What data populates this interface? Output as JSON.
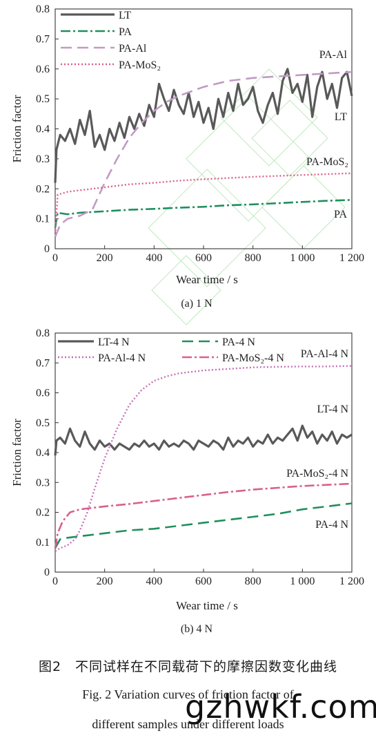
{
  "colors": {
    "LT": "#595959",
    "PA": "#1f8f5f",
    "PA-Al": "#c29ac6",
    "PA-MoS2": "#d9608c",
    "PA-Al-4N": "#c76fb5",
    "PA-MoS2-4N": "#d9608c",
    "watermark_deco": "#a8e0a8"
  },
  "chart_data": [
    {
      "type": "line",
      "panel_label": "(a) 1 N",
      "xlabel": "Wear time / s",
      "ylabel": "Friction factor",
      "xlim": [
        0,
        1200
      ],
      "ylim": [
        0,
        0.8
      ],
      "xticks": [
        "0",
        "200",
        "400",
        "600",
        "800",
        "1 000",
        "1 200"
      ],
      "yticks": [
        "0",
        "0.1",
        "0.2",
        "0.3",
        "0.4",
        "0.5",
        "0.6",
        "0.7",
        "0.8"
      ],
      "legend_position": "top-left",
      "series": [
        {
          "name": "LT",
          "key": "LT",
          "style": "solid",
          "x": [
            0,
            5,
            20,
            40,
            60,
            80,
            100,
            120,
            140,
            160,
            180,
            200,
            220,
            240,
            260,
            280,
            300,
            320,
            340,
            360,
            380,
            400,
            420,
            440,
            460,
            480,
            500,
            520,
            540,
            560,
            580,
            600,
            620,
            640,
            660,
            680,
            700,
            720,
            740,
            760,
            780,
            800,
            820,
            840,
            860,
            880,
            900,
            920,
            940,
            960,
            980,
            1000,
            1020,
            1040,
            1060,
            1080,
            1100,
            1120,
            1140,
            1160,
            1180,
            1200
          ],
          "y": [
            0.22,
            0.33,
            0.38,
            0.36,
            0.4,
            0.35,
            0.43,
            0.38,
            0.46,
            0.34,
            0.38,
            0.33,
            0.4,
            0.36,
            0.42,
            0.37,
            0.44,
            0.4,
            0.45,
            0.41,
            0.48,
            0.44,
            0.55,
            0.5,
            0.46,
            0.53,
            0.48,
            0.45,
            0.52,
            0.44,
            0.49,
            0.42,
            0.47,
            0.4,
            0.5,
            0.44,
            0.52,
            0.46,
            0.55,
            0.48,
            0.5,
            0.54,
            0.46,
            0.42,
            0.48,
            0.52,
            0.45,
            0.56,
            0.6,
            0.52,
            0.55,
            0.49,
            0.58,
            0.44,
            0.54,
            0.59,
            0.5,
            0.55,
            0.47,
            0.57,
            0.59,
            0.51
          ]
        },
        {
          "name": "PA",
          "key": "PA",
          "style": "dashdot",
          "x": [
            0,
            10,
            50,
            100,
            200,
            300,
            400,
            500,
            600,
            700,
            800,
            900,
            1000,
            1100,
            1200
          ],
          "y": [
            0.07,
            0.12,
            0.115,
            0.12,
            0.125,
            0.13,
            0.133,
            0.137,
            0.14,
            0.145,
            0.148,
            0.152,
            0.156,
            0.16,
            0.163
          ]
        },
        {
          "name": "PA-Al",
          "key": "PA-Al",
          "style": "longdash",
          "x": [
            0,
            20,
            50,
            100,
            150,
            200,
            250,
            300,
            350,
            400,
            450,
            500,
            600,
            700,
            800,
            900,
            1000,
            1100,
            1200
          ],
          "y": [
            0.04,
            0.08,
            0.1,
            0.11,
            0.13,
            0.22,
            0.3,
            0.37,
            0.42,
            0.46,
            0.49,
            0.51,
            0.54,
            0.56,
            0.57,
            0.575,
            0.58,
            0.585,
            0.59
          ]
        },
        {
          "name": "PA-MoS₂",
          "key": "PA-MoS2",
          "style": "dotted",
          "x": [
            0,
            10,
            50,
            100,
            200,
            300,
            400,
            500,
            600,
            700,
            800,
            900,
            1000,
            1100,
            1200
          ],
          "y": [
            0.05,
            0.18,
            0.19,
            0.195,
            0.205,
            0.215,
            0.22,
            0.227,
            0.232,
            0.236,
            0.24,
            0.243,
            0.246,
            0.249,
            0.252
          ]
        }
      ],
      "curve_labels": [
        "PA-Al",
        "LT",
        "PA-MoS₂",
        "PA"
      ]
    },
    {
      "type": "line",
      "panel_label": "(b) 4 N",
      "xlabel": "Wear time / s",
      "ylabel": "Friction factor",
      "xlim": [
        0,
        1200
      ],
      "ylim": [
        0,
        0.8
      ],
      "xticks": [
        "0",
        "200",
        "400",
        "600",
        "800",
        "1 000",
        "1 200"
      ],
      "yticks": [
        "0",
        "0.1",
        "0.2",
        "0.3",
        "0.4",
        "0.5",
        "0.6",
        "0.7",
        "0.8"
      ],
      "legend_position": "top",
      "series": [
        {
          "name": "LT-4 N",
          "key": "LT",
          "style": "solid",
          "x": [
            0,
            5,
            20,
            40,
            60,
            80,
            100,
            120,
            140,
            160,
            180,
            200,
            220,
            240,
            260,
            280,
            300,
            320,
            340,
            360,
            380,
            400,
            420,
            440,
            460,
            480,
            500,
            520,
            540,
            560,
            580,
            600,
            620,
            640,
            660,
            680,
            700,
            720,
            740,
            760,
            780,
            800,
            820,
            840,
            860,
            880,
            900,
            920,
            940,
            960,
            980,
            1000,
            1020,
            1040,
            1060,
            1080,
            1100,
            1120,
            1140,
            1160,
            1180,
            1200
          ],
          "y": [
            0.39,
            0.44,
            0.45,
            0.43,
            0.48,
            0.44,
            0.42,
            0.47,
            0.43,
            0.41,
            0.44,
            0.42,
            0.43,
            0.41,
            0.43,
            0.42,
            0.41,
            0.43,
            0.42,
            0.44,
            0.42,
            0.43,
            0.41,
            0.44,
            0.42,
            0.43,
            0.42,
            0.44,
            0.43,
            0.41,
            0.44,
            0.43,
            0.42,
            0.44,
            0.43,
            0.41,
            0.45,
            0.42,
            0.44,
            0.43,
            0.45,
            0.42,
            0.44,
            0.43,
            0.46,
            0.43,
            0.45,
            0.44,
            0.46,
            0.48,
            0.44,
            0.49,
            0.45,
            0.47,
            0.43,
            0.46,
            0.44,
            0.47,
            0.43,
            0.46,
            0.45,
            0.46
          ]
        },
        {
          "name": "PA-4 N",
          "key": "PA",
          "style": "longdash",
          "x": [
            0,
            20,
            50,
            100,
            200,
            300,
            400,
            500,
            600,
            700,
            800,
            900,
            1000,
            1100,
            1200
          ],
          "y": [
            0.08,
            0.11,
            0.115,
            0.12,
            0.13,
            0.14,
            0.145,
            0.155,
            0.165,
            0.175,
            0.185,
            0.195,
            0.21,
            0.22,
            0.23
          ]
        },
        {
          "name": "PA-Al-4 N",
          "key": "PA-Al-4N",
          "style": "dotted",
          "x": [
            0,
            20,
            50,
            80,
            100,
            130,
            160,
            200,
            250,
            300,
            350,
            400,
            450,
            500,
            600,
            700,
            800,
            900,
            1000,
            1100,
            1200
          ],
          "y": [
            0.07,
            0.08,
            0.09,
            0.11,
            0.14,
            0.2,
            0.28,
            0.38,
            0.48,
            0.56,
            0.61,
            0.64,
            0.655,
            0.665,
            0.675,
            0.68,
            0.685,
            0.687,
            0.688,
            0.688,
            0.69
          ]
        },
        {
          "name": "PA-MoS₂-4 N",
          "key": "PA-MoS2-4N",
          "style": "dashdot",
          "x": [
            0,
            10,
            30,
            60,
            100,
            150,
            200,
            300,
            400,
            500,
            600,
            700,
            800,
            900,
            1000,
            1100,
            1200
          ],
          "y": [
            0.08,
            0.13,
            0.17,
            0.2,
            0.21,
            0.215,
            0.22,
            0.228,
            0.238,
            0.248,
            0.258,
            0.268,
            0.276,
            0.282,
            0.288,
            0.292,
            0.296
          ]
        }
      ],
      "curve_labels": [
        "PA-Al-4 N",
        "LT-4 N",
        "PA-MoS₂-4 N",
        "PA-4 N"
      ]
    }
  ],
  "captions": {
    "cn": "图2　不同试样在不同载荷下的摩擦因数变化曲线",
    "en_line1": "Fig. 2    Variation curves of friction factor of",
    "en_line2": "different samples under different loads"
  },
  "watermark": "gzhwkf.com"
}
